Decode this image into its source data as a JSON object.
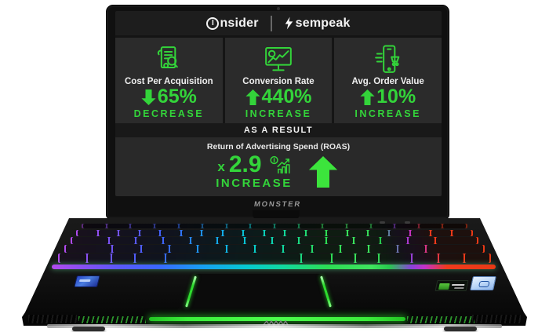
{
  "screen": {
    "header": {
      "brand_left_initial": "I",
      "brand_left_rest": "nsider",
      "brand_right": "sempeak"
    },
    "stats": [
      {
        "label": "Cost Per Acquisition",
        "value": "65%",
        "direction": "down",
        "change": "DECREASE"
      },
      {
        "label": "Conversion Rate",
        "value": "440%",
        "direction": "up",
        "change": "INCREASE"
      },
      {
        "label": "Avg. Order Value",
        "value": "10%",
        "direction": "up",
        "change": "INCREASE"
      }
    ],
    "result_banner": "AS A RESULT",
    "roas": {
      "label": "Return of Advertising Spend (ROAS)",
      "prefix": "x",
      "value": "2.9",
      "change": "INCREASE"
    },
    "bezel_brand": "MONSTER"
  },
  "colors": {
    "accent_green": "#33d43a",
    "light_bar_green": "#3bee3b",
    "screen_panel": "#2b2b2b"
  }
}
